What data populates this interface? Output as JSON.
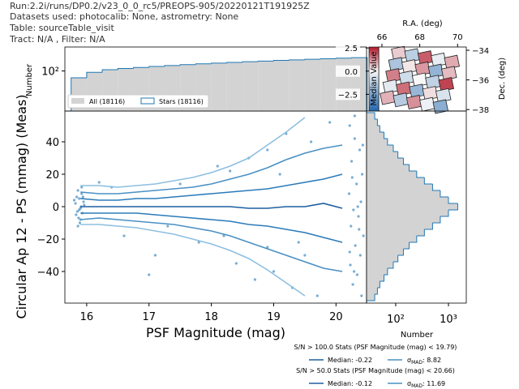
{
  "header": [
    "Run:2.2i/runs/DP0.2/v23_0_0_rc5/PREOPS-905/20220121T191925Z",
    "Datasets used: photocalib: None, astrometry: None",
    "Table: sourceTable_visit",
    "Tract: N/A , Filter: N/A"
  ],
  "chart_data": [
    {
      "type": "scatter",
      "xlabel": "PSF Magnitude (mag)",
      "ylabel": "Circular Ap 12 - PS (mmag) (Meas)",
      "xlim": [
        15.65,
        20.49
      ],
      "ylim": [
        -59.5,
        59
      ],
      "xticks": [
        16,
        17,
        18,
        19,
        20
      ],
      "yticks": [
        {
          "value": -40,
          "label": "−40"
        },
        {
          "value": -20,
          "label": "−20"
        },
        0,
        20,
        40
      ],
      "color": "#1f77b4",
      "x": [
        15.82,
        15.85,
        15.88,
        15.9,
        15.92,
        15.87,
        15.95,
        15.83,
        15.91,
        15.86,
        15.89,
        15.93,
        15.84,
        15.96,
        15.9,
        15.8,
        15.88,
        15.94,
        15.86,
        15.92,
        20.22,
        20.3,
        20.38,
        20.25,
        20.42,
        20.33,
        20.21,
        20.4,
        20.28,
        20.36,
        20.24,
        20.44,
        20.31,
        20.39,
        20.23,
        20.34,
        20.27,
        20.41,
        20.3,
        20.37,
        20.26,
        20.43,
        20.29,
        20.35,
        20.22,
        16.2,
        16.6,
        17.1,
        17.5,
        17.8,
        18.1,
        18.4,
        18.6,
        18.7,
        18.9,
        19.0,
        19.2,
        19.3,
        19.5,
        19.6,
        19.7,
        18.2,
        17.3,
        16.4,
        19.9,
        18.9,
        19.1,
        17.0,
        18.3,
        19.4
      ],
      "values": [
        2,
        -3,
        5,
        -1,
        8,
        -7,
        3,
        -5,
        0,
        10,
        -10,
        -4,
        6,
        1,
        -8,
        4,
        -2,
        6,
        -12,
        12,
        50,
        42,
        35,
        28,
        20,
        14,
        8,
        3,
        -2,
        -6,
        -12,
        -18,
        -24,
        -30,
        -36,
        -42,
        -48,
        -55,
        56,
        -14,
        18,
        38,
        -40,
        0,
        -28,
        15,
        -18,
        -30,
        14,
        -22,
        25,
        -35,
        30,
        -45,
        35,
        -40,
        45,
        -50,
        -30,
        40,
        -55,
        -18,
        -12,
        12,
        52,
        -25,
        20,
        -42,
        22,
        -22
      ],
      "lines": {
        "x": [
          15.9,
          16.2,
          16.5,
          16.8,
          17.1,
          17.4,
          17.7,
          18.0,
          18.3,
          18.6,
          18.9,
          19.2,
          19.5,
          19.8,
          20.1
        ],
        "series": [
          {
            "color": "#8dbfe0",
            "values": [
              13,
              13,
              12,
              13,
              14,
              16,
              18,
              21,
              25,
              30,
              38,
              46,
              55,
              null,
              null
            ]
          },
          {
            "color": "#8dbfe0",
            "values": [
              -11,
              -11,
              -12,
              -13,
              -15,
              -17,
              -20,
              -23,
              -27,
              -32,
              -39,
              -47,
              -55,
              null,
              null
            ]
          },
          {
            "color": "#4a90c4",
            "values": [
              9,
              8,
              8,
              9,
              10,
              11,
              12,
              14,
              17,
              20,
              24,
              29,
              33,
              36,
              38
            ]
          },
          {
            "color": "#4a90c4",
            "values": [
              -8,
              -7,
              -8,
              -9,
              -10,
              -11,
              -13,
              -15,
              -18,
              -22,
              -26,
              -30,
              -34,
              -38,
              -40
            ]
          },
          {
            "color": "#2b7bba",
            "values": [
              5,
              4,
              4,
              5,
              5,
              6,
              7,
              8,
              9,
              10,
              11,
              13,
              15,
              17,
              20
            ]
          },
          {
            "color": "#2b7bba",
            "values": [
              -4,
              -4,
              -4,
              -4,
              -5,
              -6,
              -7,
              -8,
              -9,
              -11,
              -12,
              -14,
              -16,
              -19,
              -22
            ]
          },
          {
            "color": "#1f5fa0",
            "values": [
              0,
              0,
              0,
              0,
              0,
              0,
              0,
              0,
              0,
              -1,
              -1,
              0,
              0,
              2,
              -1
            ]
          }
        ]
      }
    },
    {
      "type": "histogram",
      "ylabel": "Number",
      "xlim": [
        15.65,
        20.49
      ],
      "ylim": [
        5,
        600
      ],
      "log_y": true,
      "yticks": [
        {
          "value": 100,
          "label": "10²"
        }
      ],
      "legend": "lower left",
      "bins": [
        15.75,
        16,
        16.25,
        16.5,
        16.75,
        17,
        17.25,
        17.5,
        17.75,
        18,
        18.25,
        18.5,
        18.75,
        19,
        19.25,
        19.5,
        19.75,
        20,
        20.25,
        20.5
      ],
      "series": [
        {
          "name": "All (18116)",
          "color": "#d3d3d3",
          "values": [
            60,
            90,
            110,
            120,
            130,
            140,
            150,
            160,
            170,
            180,
            190,
            200,
            210,
            220,
            230,
            240,
            250,
            260,
            270
          ]
        },
        {
          "name": "Stars (18116)",
          "color": "#1f77b4",
          "values": [
            60,
            90,
            110,
            120,
            130,
            140,
            150,
            160,
            170,
            180,
            190,
            200,
            210,
            220,
            230,
            240,
            250,
            260,
            270
          ]
        }
      ]
    },
    {
      "type": "histogram",
      "orientation": "horizontal",
      "xlabel": "Number",
      "xlim": [
        28,
        2180
      ],
      "log_x": true,
      "xticks": [
        {
          "value": 100,
          "label": "10²"
        },
        {
          "value": 1000,
          "label": "10³"
        }
      ],
      "ylim": [
        -59.5,
        59
      ],
      "color": "#1f77b4",
      "fill": "#d3d3d3",
      "bins": [
        -58,
        -54,
        -50,
        -46,
        -42,
        -38,
        -34,
        -30,
        -26,
        -22,
        -18,
        -14,
        -10,
        -6,
        -2,
        2,
        6,
        10,
        14,
        18,
        22,
        26,
        30,
        34,
        38,
        42,
        46,
        50,
        54,
        58
      ],
      "values": [
        40,
        45,
        50,
        60,
        70,
        90,
        110,
        140,
        180,
        250,
        350,
        500,
        700,
        1000,
        1500,
        1000,
        700,
        500,
        350,
        250,
        180,
        140,
        110,
        90,
        70,
        60,
        50,
        45,
        40
      ]
    },
    {
      "type": "sky",
      "xlabel": "R.A. (deg)",
      "ylabel": "Dec. (deg)",
      "xlim": [
        65.83,
        70.46
      ],
      "ylim": [
        -38.1,
        -33.78
      ],
      "xticks": [
        66,
        68,
        70
      ],
      "yticks": [
        {
          "value": -34,
          "label": "−34"
        },
        {
          "value": -36,
          "label": "−36"
        },
        {
          "value": -38,
          "label": "−38"
        }
      ],
      "x": [
        66.9,
        67.6,
        68.3,
        69.0,
        69.7,
        66.75,
        67.45,
        68.15,
        68.85,
        69.55,
        66.6,
        67.3,
        68.0,
        68.7,
        69.4,
        66.45,
        67.15,
        67.85,
        68.55,
        69.25,
        66.3,
        67.0,
        67.7,
        68.4,
        69.1
      ],
      "y": [
        -34.2,
        -34.35,
        -34.5,
        -34.65,
        -34.8,
        -34.95,
        -35.1,
        -35.25,
        -35.4,
        -35.55,
        -35.7,
        -35.85,
        -36.0,
        -36.15,
        -36.3,
        -36.45,
        -36.6,
        -36.75,
        -36.9,
        -37.05,
        -37.2,
        -37.35,
        -37.5,
        -37.65,
        -37.8
      ],
      "values": [
        0.5,
        -1.2,
        1.8,
        -0.3,
        0.9,
        -1.5,
        0.2,
        1.1,
        -2.0,
        0.7,
        1.4,
        -0.8,
        0.0,
        -1.1,
        2.1,
        -0.4,
        1.6,
        -1.9,
        0.3,
        -0.6,
        0.8,
        -1.3,
        1.2,
        -0.2,
        -2.2
      ],
      "colorbar": {
        "label": "Median Value",
        "lim": [
          -4.3,
          2.6
        ],
        "ticks": [
          2.5,
          {
            "value": 0,
            "label": "0.0"
          },
          {
            "value": -2.5,
            "label": "−2.5"
          }
        ]
      }
    }
  ],
  "stats": [
    {
      "title": "S/N > 100.0 Stats (PSF Magnitude (mag) < 19.79)",
      "median": "Median: -0.22",
      "sigma": {
        "symbol": "σ",
        "subscript": "MAD",
        "text": ": 8.82"
      }
    },
    {
      "title": "S/N > 50.0 Stats (PSF Magnitude (mag) < 20.66)",
      "median": "Median: -0.12",
      "sigma": {
        "symbol": "σ",
        "subscript": "MAD",
        "text": ": 11.69"
      }
    }
  ]
}
